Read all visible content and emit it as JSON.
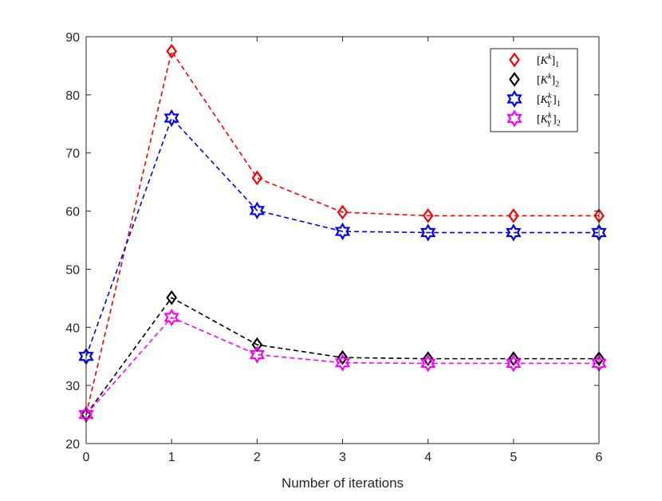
{
  "chart_data": {
    "type": "line",
    "title": "",
    "xlabel": "Number of iterations",
    "ylabel": "",
    "xlim": [
      0,
      6
    ],
    "ylim": [
      20,
      90
    ],
    "x": [
      0,
      1,
      2,
      3,
      4,
      5,
      6
    ],
    "xticks": [
      "0",
      "1",
      "2",
      "3",
      "4",
      "5",
      "6"
    ],
    "yticks": [
      "20",
      "30",
      "40",
      "50",
      "60",
      "70",
      "80",
      "90"
    ],
    "grid": false,
    "legend_position": "top-right",
    "series": [
      {
        "name": "[K^k]_1",
        "legend_base": "K",
        "legend_sup": "k",
        "legend_sub": "1",
        "legend_sub_sub": "",
        "marker": "diamond",
        "color": "#ff0000",
        "line_style": "dashed",
        "values": [
          25,
          87.5,
          65.7,
          59.8,
          59.2,
          59.2,
          59.2
        ]
      },
      {
        "name": "[K^k]_2",
        "legend_base": "K",
        "legend_sup": "k",
        "legend_sub": "2",
        "legend_sub_sub": "",
        "marker": "diamond",
        "color": "#000000",
        "line_style": "dashed",
        "values": [
          25,
          45.1,
          37.0,
          34.8,
          34.6,
          34.6,
          34.6
        ]
      },
      {
        "name": "[K_Y^k]_1",
        "legend_base": "K",
        "legend_sup": "k",
        "legend_sub": "1",
        "legend_sub_sub": "Y",
        "marker": "hexagram",
        "color": "#0000ff",
        "line_style": "dashed",
        "values": [
          35,
          76.0,
          60.1,
          56.5,
          56.3,
          56.3,
          56.3
        ]
      },
      {
        "name": "[K_Y^k]_2",
        "legend_base": "K",
        "legend_sup": "k",
        "legend_sub": "2",
        "legend_sub_sub": "Y",
        "marker": "hexagram",
        "color": "#ff00ff",
        "line_style": "dashed",
        "values": [
          25,
          41.7,
          35.3,
          33.9,
          33.8,
          33.8,
          33.8
        ]
      }
    ]
  }
}
